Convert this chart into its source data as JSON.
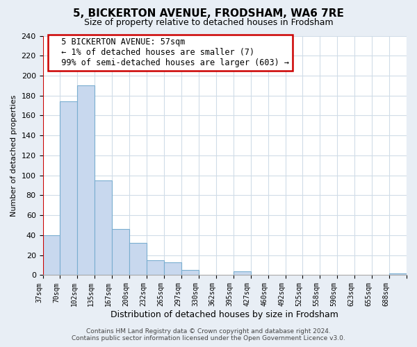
{
  "title": "5, BICKERTON AVENUE, FRODSHAM, WA6 7RE",
  "subtitle": "Size of property relative to detached houses in Frodsham",
  "xlabel": "Distribution of detached houses by size in Frodsham",
  "ylabel": "Number of detached properties",
  "bin_labels": [
    "37sqm",
    "70sqm",
    "102sqm",
    "135sqm",
    "167sqm",
    "200sqm",
    "232sqm",
    "265sqm",
    "297sqm",
    "330sqm",
    "362sqm",
    "395sqm",
    "427sqm",
    "460sqm",
    "492sqm",
    "525sqm",
    "558sqm",
    "590sqm",
    "623sqm",
    "655sqm",
    "688sqm"
  ],
  "bar_values": [
    40,
    174,
    190,
    95,
    46,
    32,
    15,
    13,
    5,
    0,
    0,
    4,
    0,
    0,
    0,
    0,
    0,
    0,
    0,
    0,
    2
  ],
  "bar_color": "#c8d8ee",
  "bar_edge_color": "#7aaed0",
  "annotation_title": "5 BICKERTON AVENUE: 57sqm",
  "annotation_line1": "← 1% of detached houses are smaller (7)",
  "annotation_line2": "99% of semi-detached houses are larger (603) →",
  "annotation_box_color": "#ffffff",
  "annotation_border_color": "#cc0000",
  "vline_color": "#cc0000",
  "ylim": [
    0,
    240
  ],
  "yticks": [
    0,
    20,
    40,
    60,
    80,
    100,
    120,
    140,
    160,
    180,
    200,
    220,
    240
  ],
  "footer_line1": "Contains HM Land Registry data © Crown copyright and database right 2024.",
  "footer_line2": "Contains public sector information licensed under the Open Government Licence v3.0.",
  "bg_color": "#e8eef5",
  "plot_bg_color": "#ffffff",
  "grid_color": "#d0dce8",
  "title_fontsize": 11,
  "subtitle_fontsize": 9,
  "ylabel_fontsize": 8,
  "xlabel_fontsize": 9,
  "tick_fontsize": 8,
  "annotation_fontsize": 8.5,
  "footer_fontsize": 6.5
}
